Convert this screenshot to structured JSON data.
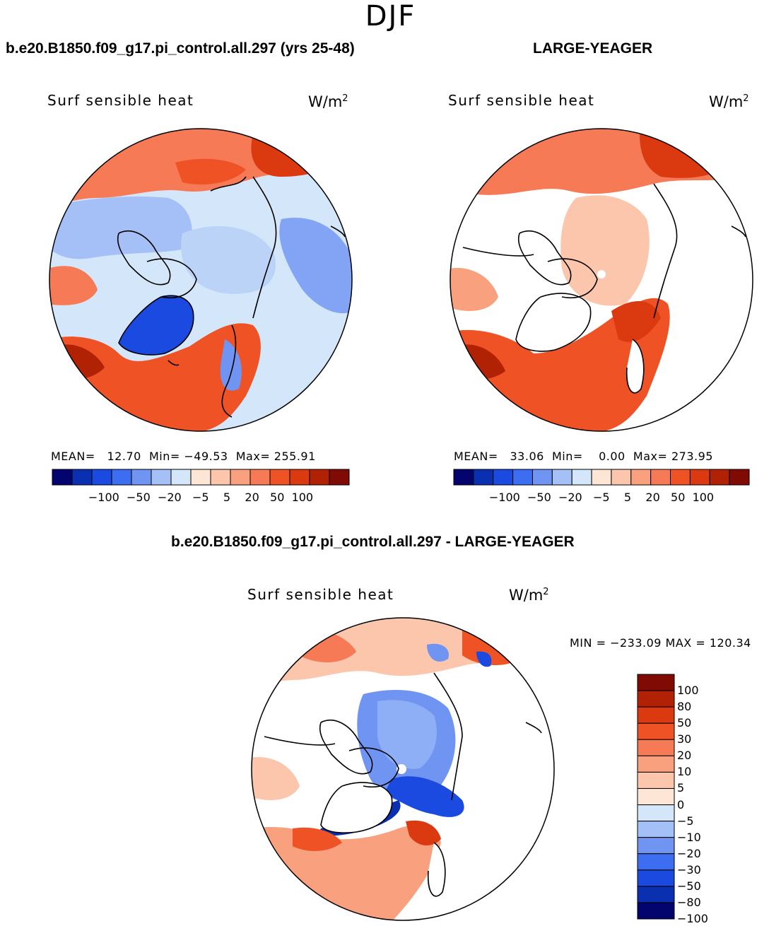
{
  "season": "DJF",
  "panels": {
    "left": {
      "title": "b.e20.B1850.f09_g17.pi_control.all.297 (yrs 25-48)",
      "variable": "Surf sensible heat",
      "units_base": "W/m",
      "units_exp": "2",
      "stats": "MEAN=   12.70  Min= −49.53  Max= 255.91"
    },
    "right": {
      "title": "LARGE-YEAGER",
      "variable": "Surf sensible heat",
      "units_base": "W/m",
      "units_exp": "2",
      "stats": "MEAN=   33.06  Min=    0.00  Max= 273.95"
    },
    "diff": {
      "title": "b.e20.B1850.f09_g17.pi_control.all.297 - LARGE-YEAGER",
      "variable": "Surf sensible heat",
      "units_base": "W/m",
      "units_exp": "2",
      "stats": "MIN = −233.09 MAX = 120.34"
    }
  },
  "colorbar_top": {
    "labels": "−100  −50  −20   −5    5    20   50  100",
    "colors": [
      "#04046e",
      "#0a2fb0",
      "#1a4ae0",
      "#3d6df0",
      "#6f94f2",
      "#a5c0f7",
      "#d3e6fa",
      "#fde6d6",
      "#fcc6ac",
      "#f9a07f",
      "#f57a55",
      "#ef5224",
      "#db3a10",
      "#b12205",
      "#7f0b04"
    ]
  },
  "colorbar_diff": {
    "labels": [
      "100",
      "80",
      "50",
      "30",
      "20",
      "10",
      "5",
      "0",
      "−5",
      "−10",
      "−20",
      "−30",
      "−50",
      "−80",
      "−100"
    ],
    "colors": [
      "#7f0b04",
      "#b12205",
      "#db3a10",
      "#ef5224",
      "#f57a55",
      "#f9a07f",
      "#fcc6ac",
      "#fde6d6",
      "#d3e6fa",
      "#a5c0f7",
      "#6f94f2",
      "#3d6df0",
      "#1a4ae0",
      "#0a2fb0",
      "#04046e"
    ]
  }
}
